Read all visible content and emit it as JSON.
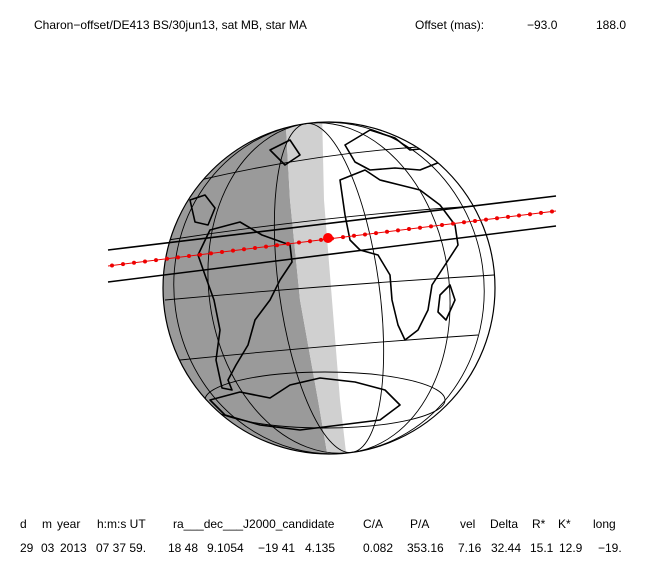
{
  "header": {
    "title": "Charon−offset/DE413 BS/30jun13, sat MB, star MA",
    "offset_label": "Offset (mas):",
    "offset_x": "−93.0",
    "offset_y": "188.0"
  },
  "table": {
    "headers": [
      "d",
      "m",
      "year",
      "h:m:s UT",
      "ra___dec___J2000_candidate",
      "C/A",
      "P/A",
      "vel",
      "Delta",
      "R*",
      "K*",
      "long"
    ],
    "rows": [
      [
        "29",
        "03",
        "2013",
        "07 37 59.",
        "18 48",
        "9.1054",
        "−19 41",
        "4.135",
        "0.082",
        "353.16",
        "7.16",
        "32.44",
        "15.1",
        "12.9",
        "−19."
      ]
    ]
  }
}
